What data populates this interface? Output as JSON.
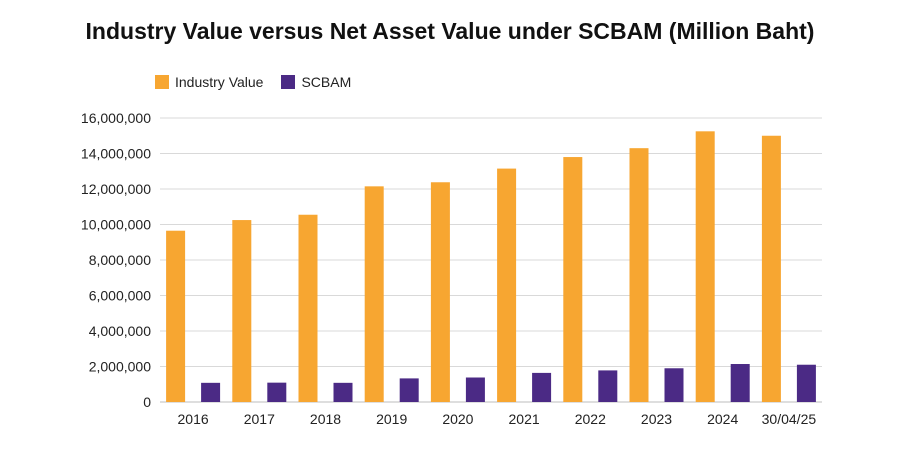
{
  "chart_data": {
    "type": "bar",
    "title": "Industry Value versus Net Asset Value under SCBAM (Million Baht)",
    "categories": [
      "2016",
      "2017",
      "2018",
      "2019",
      "2020",
      "2021",
      "2022",
      "2023",
      "2024",
      "30/04/25"
    ],
    "series": [
      {
        "name": "Industry Value",
        "color": "#F7A631",
        "values": [
          9650000,
          10250000,
          10550000,
          12150000,
          12380000,
          13150000,
          13800000,
          14300000,
          15250000,
          15000000
        ]
      },
      {
        "name": "SCBAM",
        "color": "#4B2A85",
        "values": [
          1080000,
          1090000,
          1080000,
          1330000,
          1380000,
          1640000,
          1780000,
          1900000,
          2140000,
          2100000
        ]
      }
    ],
    "ylim": [
      0,
      16000000
    ],
    "yticks": [
      0,
      2000000,
      4000000,
      6000000,
      8000000,
      10000000,
      12000000,
      14000000,
      16000000
    ],
    "ytick_labels": [
      "0",
      "2,000,000",
      "4,000,000",
      "6,000,000",
      "8,000,000",
      "10,000,000",
      "12,000,000",
      "14,000,000",
      "16,000,000"
    ],
    "xlabel": "",
    "ylabel": "",
    "grid": true,
    "legend_position": "top-left"
  }
}
